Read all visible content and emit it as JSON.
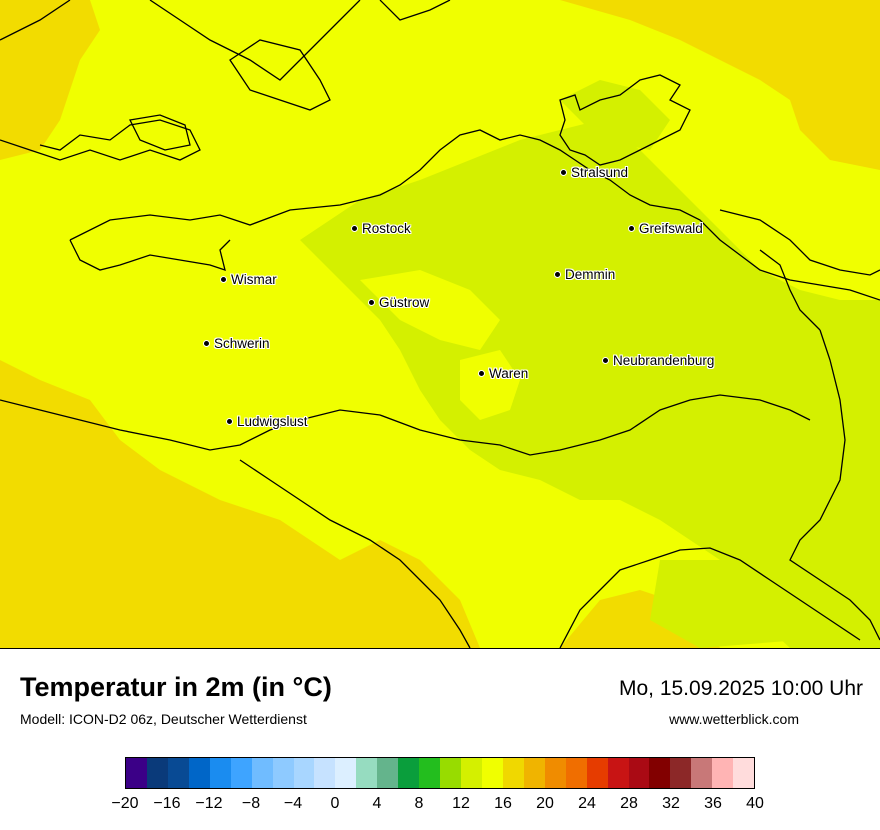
{
  "title": "Temperatur in 2m (in °C)",
  "model": "Modell: ICON-D2 06z, Deutscher Wetterdienst",
  "datetime": "Mo, 15.09.2025 10:00 Uhr",
  "website": "www.wetterblick.com",
  "cities": [
    {
      "name": "Stralsund"
    },
    {
      "name": "Rostock"
    },
    {
      "name": "Greifswald"
    },
    {
      "name": "Wismar"
    },
    {
      "name": "Demmin"
    },
    {
      "name": "Güstrow"
    },
    {
      "name": "Schwerin"
    },
    {
      "name": "Neubrandenburg"
    },
    {
      "name": "Waren"
    },
    {
      "name": "Ludwigslust"
    }
  ],
  "colorbar": {
    "colors": [
      "#3b0087",
      "#0a3a7a",
      "#084a94",
      "#0066c8",
      "#1a8cf0",
      "#3ea4ff",
      "#70bcff",
      "#8ecaff",
      "#a8d6ff",
      "#c6e2ff",
      "#dcefff",
      "#96dcc0",
      "#64b48c",
      "#0a9e3c",
      "#23be1e",
      "#98dc00",
      "#d4f000",
      "#f0ff00",
      "#f0d800",
      "#f0b400",
      "#f08c00",
      "#f06e00",
      "#e63c00",
      "#c81414",
      "#aa0a14",
      "#820000",
      "#8c2828",
      "#c87878",
      "#ffb4b4",
      "#ffdcdc"
    ],
    "ticks": [
      "−20",
      "−16",
      "−12",
      "−8",
      "−4",
      "0",
      "4",
      "8",
      "12",
      "16",
      "20",
      "24",
      "28",
      "32",
      "36",
      "40"
    ],
    "min": -20,
    "max": 40
  },
  "field_colors": {
    "warm": "#f2dc00",
    "mid": "#f0ff00",
    "cool": "#d4f000",
    "coast": "#000000"
  }
}
